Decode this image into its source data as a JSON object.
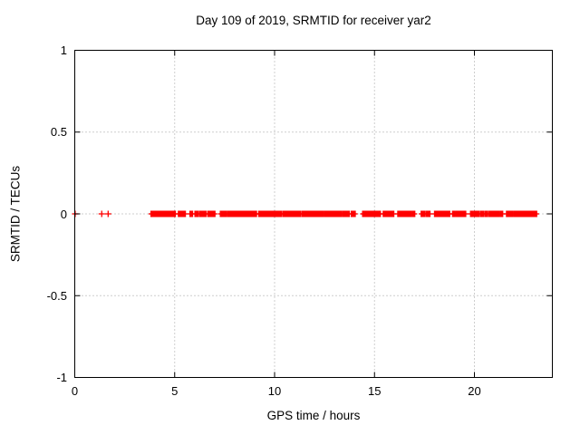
{
  "window": {
    "background_color": "#ffffff",
    "text_color": "#000000"
  },
  "chart_data": {
    "type": "scatter",
    "title": "Day 109 of 2019, SRMTID for receiver yar2",
    "xlabel": "GPS time / hours",
    "ylabel": "SRMTID / TECUs",
    "xlim": [
      0,
      23.9
    ],
    "ylim": [
      -1,
      1
    ],
    "xticks": {
      "values": [
        0,
        5,
        10,
        15,
        20
      ],
      "labels": [
        "0",
        "5",
        "10",
        "15",
        "20"
      ]
    },
    "yticks": {
      "values": [
        -1,
        -0.5,
        0,
        0.5,
        1
      ],
      "labels": [
        "-1",
        "-0.5",
        "0",
        "0.5",
        "1"
      ]
    },
    "grid": {
      "show": true,
      "style": "dotted",
      "color": "#9e9e9e",
      "x_at": [
        5,
        10,
        15,
        20
      ],
      "y_at": [
        -0.5,
        0,
        0.5
      ]
    },
    "border_color": "#000000",
    "legend": "none",
    "series": [
      {
        "name": "SRMTID",
        "marker": "plus",
        "color": "#ff0000",
        "y_value": 0,
        "single_points_hours": [
          0.02,
          1.35,
          1.67
        ],
        "cluster_ranges_hours": [
          [
            3.83,
            3.97
          ],
          [
            4.03,
            4.2
          ],
          [
            4.28,
            4.47
          ],
          [
            4.52,
            4.62
          ],
          [
            4.68,
            5.02
          ],
          [
            5.2,
            5.35
          ],
          [
            5.4,
            5.52
          ],
          [
            5.78,
            5.88
          ],
          [
            6.03,
            6.18
          ],
          [
            6.28,
            6.42
          ],
          [
            6.48,
            6.55
          ],
          [
            6.67,
            6.86
          ],
          [
            6.9,
            7.0
          ],
          [
            7.3,
            7.45
          ],
          [
            7.5,
            7.57
          ],
          [
            7.66,
            7.9
          ],
          [
            7.95,
            8.03
          ],
          [
            8.1,
            8.32
          ],
          [
            8.38,
            8.52
          ],
          [
            8.58,
            9.08
          ],
          [
            9.22,
            9.42
          ],
          [
            9.5,
            9.75
          ],
          [
            9.8,
            9.98
          ],
          [
            10.05,
            10.32
          ],
          [
            10.42,
            10.68
          ],
          [
            10.75,
            11.02
          ],
          [
            11.08,
            11.28
          ],
          [
            11.38,
            11.72
          ],
          [
            11.78,
            12.12
          ],
          [
            12.18,
            12.42
          ],
          [
            12.5,
            12.72
          ],
          [
            12.78,
            12.95
          ],
          [
            13.02,
            13.33
          ],
          [
            13.42,
            13.6
          ],
          [
            13.66,
            13.72
          ],
          [
            13.85,
            14.02
          ],
          [
            14.42,
            15.03
          ],
          [
            15.1,
            15.28
          ],
          [
            15.45,
            15.6
          ],
          [
            15.68,
            15.82
          ],
          [
            15.86,
            15.95
          ],
          [
            16.18,
            16.42
          ],
          [
            16.48,
            16.58
          ],
          [
            16.65,
            16.82
          ],
          [
            16.9,
            17.0
          ],
          [
            17.35,
            17.52
          ],
          [
            17.62,
            17.76
          ],
          [
            18.02,
            18.16
          ],
          [
            18.22,
            18.35
          ],
          [
            18.42,
            18.6
          ],
          [
            18.66,
            18.75
          ],
          [
            18.92,
            19.0
          ],
          [
            19.08,
            19.2
          ],
          [
            19.26,
            19.38
          ],
          [
            19.45,
            19.55
          ],
          [
            19.82,
            19.9
          ],
          [
            19.98,
            20.22
          ],
          [
            20.32,
            20.45
          ],
          [
            20.55,
            20.65
          ],
          [
            20.75,
            20.88
          ],
          [
            20.95,
            21.22
          ],
          [
            21.3,
            21.4
          ],
          [
            21.62,
            21.72
          ],
          [
            21.78,
            21.9
          ],
          [
            21.98,
            22.08
          ],
          [
            22.15,
            22.55
          ],
          [
            22.6,
            22.95
          ],
          [
            23.0,
            23.1
          ]
        ]
      }
    ]
  }
}
